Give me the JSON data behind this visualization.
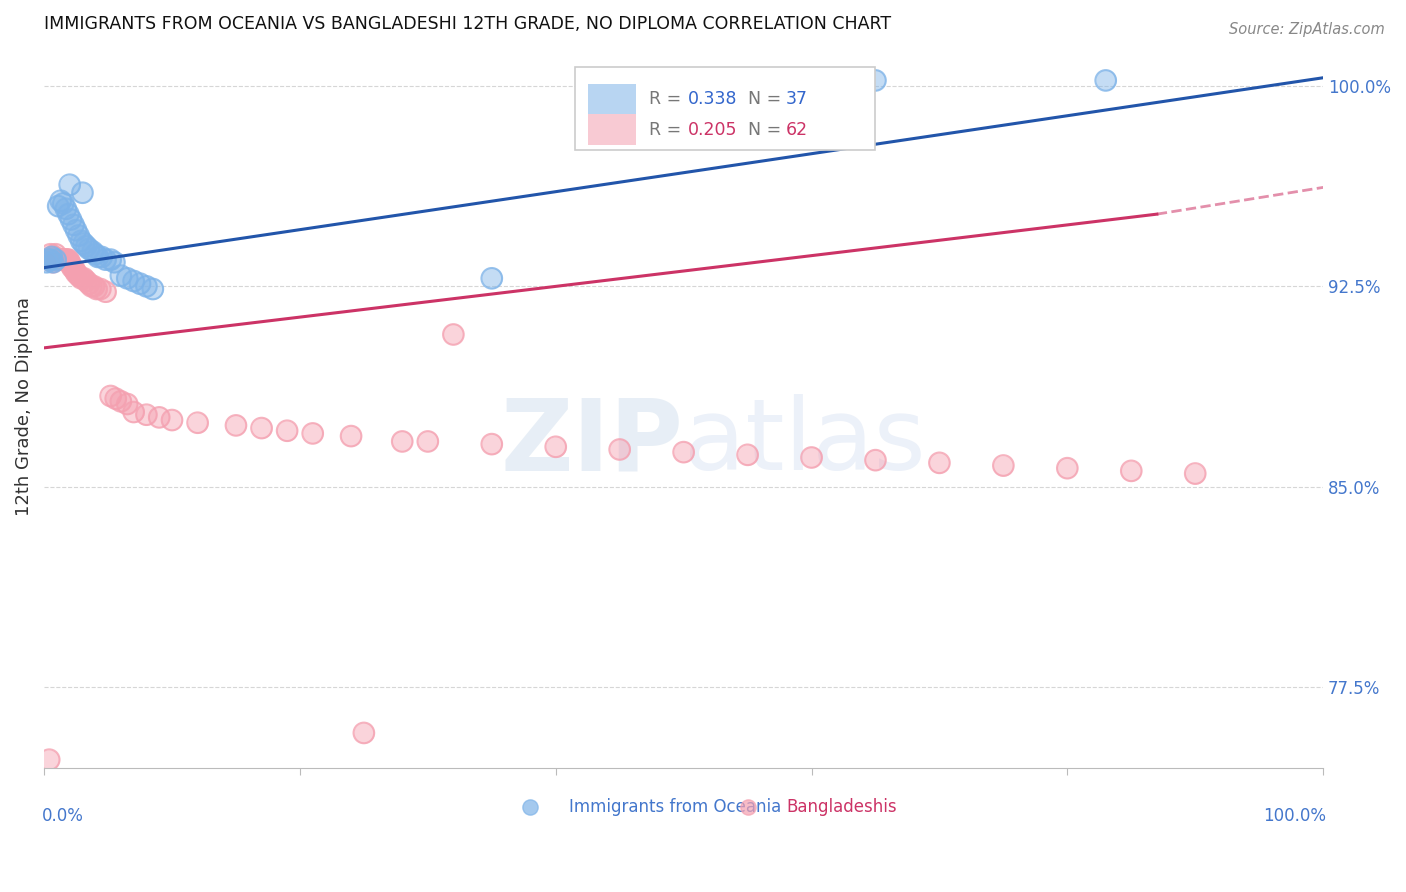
{
  "title": "IMMIGRANTS FROM OCEANIA VS BANGLADESHI 12TH GRADE, NO DIPLOMA CORRELATION CHART",
  "source": "Source: ZipAtlas.com",
  "ylabel": "12th Grade, No Diploma",
  "ytick_values": [
    0.775,
    0.85,
    0.925,
    1.0
  ],
  "ytick_labels": [
    "77.5%",
    "85.0%",
    "92.5%",
    "100.0%"
  ],
  "xmin": 0.0,
  "xmax": 1.0,
  "ymin": 0.745,
  "ymax": 1.015,
  "blue_R": 0.338,
  "blue_N": 37,
  "pink_R": 0.205,
  "pink_N": 62,
  "blue_scatter_color": "#7EB3E8",
  "pink_scatter_color": "#F4A0B0",
  "blue_line_color": "#2255AA",
  "pink_line_color": "#CC3366",
  "grid_color": "#CCCCCC",
  "blue_points_x": [
    0.002,
    0.004,
    0.005,
    0.006,
    0.007,
    0.009,
    0.011,
    0.013,
    0.015,
    0.017,
    0.019,
    0.021,
    0.023,
    0.025,
    0.027,
    0.029,
    0.031,
    0.033,
    0.035,
    0.038,
    0.04,
    0.042,
    0.045,
    0.048,
    0.052,
    0.055,
    0.06,
    0.065,
    0.07,
    0.075,
    0.08,
    0.085,
    0.35,
    0.65,
    0.83,
    0.02,
    0.03
  ],
  "blue_points_y": [
    0.934,
    0.935,
    0.935,
    0.936,
    0.934,
    0.935,
    0.955,
    0.957,
    0.956,
    0.954,
    0.952,
    0.95,
    0.948,
    0.946,
    0.944,
    0.942,
    0.941,
    0.94,
    0.939,
    0.938,
    0.937,
    0.936,
    0.936,
    0.935,
    0.935,
    0.934,
    0.929,
    0.928,
    0.927,
    0.926,
    0.925,
    0.924,
    0.928,
    1.002,
    1.002,
    0.963,
    0.96
  ],
  "pink_points_x": [
    0.003,
    0.005,
    0.006,
    0.007,
    0.008,
    0.009,
    0.01,
    0.011,
    0.012,
    0.013,
    0.014,
    0.015,
    0.016,
    0.017,
    0.018,
    0.019,
    0.02,
    0.021,
    0.022,
    0.024,
    0.025,
    0.027,
    0.029,
    0.031,
    0.033,
    0.035,
    0.037,
    0.039,
    0.041,
    0.044,
    0.048,
    0.052,
    0.056,
    0.06,
    0.065,
    0.07,
    0.08,
    0.09,
    0.1,
    0.12,
    0.15,
    0.17,
    0.19,
    0.21,
    0.24,
    0.28,
    0.3,
    0.35,
    0.4,
    0.45,
    0.5,
    0.55,
    0.6,
    0.65,
    0.7,
    0.75,
    0.8,
    0.85,
    0.9,
    0.32,
    0.25,
    0.004
  ],
  "pink_points_y": [
    0.935,
    0.937,
    0.936,
    0.934,
    0.936,
    0.937,
    0.935,
    0.935,
    0.935,
    0.935,
    0.935,
    0.935,
    0.935,
    0.935,
    0.935,
    0.935,
    0.934,
    0.933,
    0.932,
    0.931,
    0.93,
    0.929,
    0.928,
    0.928,
    0.927,
    0.926,
    0.925,
    0.925,
    0.924,
    0.924,
    0.923,
    0.884,
    0.883,
    0.882,
    0.881,
    0.878,
    0.877,
    0.876,
    0.875,
    0.874,
    0.873,
    0.872,
    0.871,
    0.87,
    0.869,
    0.867,
    0.867,
    0.866,
    0.865,
    0.864,
    0.863,
    0.862,
    0.861,
    0.86,
    0.859,
    0.858,
    0.857,
    0.856,
    0.855,
    0.907,
    0.758,
    0.748
  ],
  "blue_line": [
    [
      0.0,
      0.932
    ],
    [
      1.0,
      1.003
    ]
  ],
  "pink_line_solid": [
    [
      0.0,
      0.902
    ],
    [
      0.87,
      0.952
    ]
  ],
  "pink_line_dashed": [
    [
      0.87,
      0.952
    ],
    [
      1.0,
      0.962
    ]
  ]
}
